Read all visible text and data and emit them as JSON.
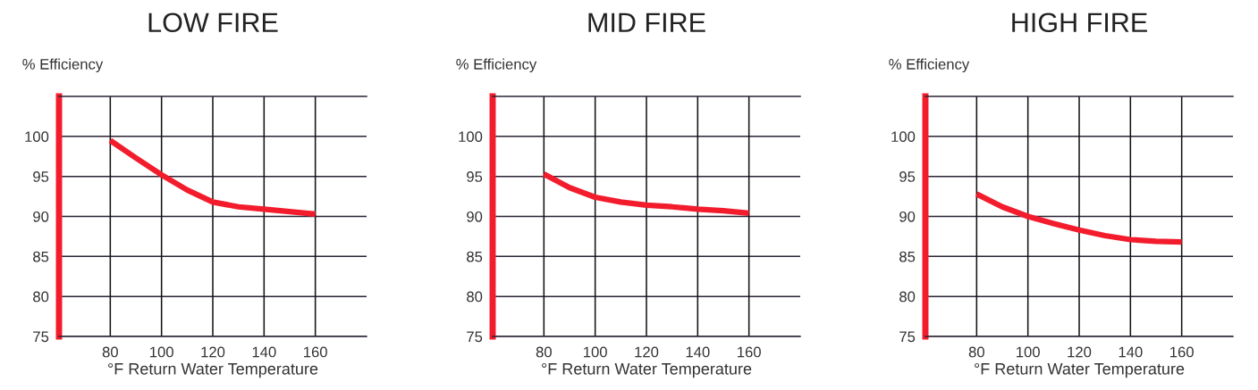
{
  "chart_data": [
    {
      "type": "line",
      "title": "LOW FIRE",
      "xlabel": "°F Return Water Temperature",
      "ylabel": "% Efficiency",
      "x": [
        80,
        90,
        100,
        110,
        120,
        130,
        140,
        150,
        160
      ],
      "series": [
        {
          "color": "#f21c2c",
          "values": [
            99.5,
            97.3,
            95.2,
            93.3,
            91.8,
            91.2,
            90.9,
            90.6,
            90.3
          ]
        }
      ],
      "xlim": [
        60,
        180
      ],
      "xticks": [
        80,
        100,
        120,
        140,
        160
      ],
      "ylim": [
        75,
        105
      ],
      "yticks": [
        75,
        80,
        85,
        90,
        95,
        100
      ],
      "grid": true,
      "marker": "none",
      "line_style": "solid",
      "legend": false
    },
    {
      "type": "line",
      "title": "MID FIRE",
      "xlabel": "°F Return Water Temperature",
      "ylabel": "% Efficiency",
      "x": [
        80,
        90,
        100,
        110,
        120,
        130,
        140,
        150,
        160
      ],
      "series": [
        {
          "color": "#f21c2c",
          "values": [
            95.3,
            93.6,
            92.4,
            91.8,
            91.4,
            91.2,
            90.9,
            90.7,
            90.4
          ]
        }
      ],
      "xlim": [
        60,
        180
      ],
      "xticks": [
        80,
        100,
        120,
        140,
        160
      ],
      "ylim": [
        75,
        105
      ],
      "yticks": [
        75,
        80,
        85,
        90,
        95,
        100
      ],
      "grid": true,
      "marker": "none",
      "line_style": "solid",
      "legend": false
    },
    {
      "type": "line",
      "title": "HIGH FIRE",
      "xlabel": "°F Return Water Temperature",
      "ylabel": "% Efficiency",
      "x": [
        80,
        90,
        100,
        110,
        120,
        130,
        140,
        150,
        160
      ],
      "series": [
        {
          "color": "#f21c2c",
          "values": [
            92.8,
            91.2,
            90.0,
            89.1,
            88.3,
            87.6,
            87.1,
            86.9,
            86.8
          ]
        }
      ],
      "xlim": [
        60,
        180
      ],
      "xticks": [
        80,
        100,
        120,
        140,
        160
      ],
      "ylim": [
        75,
        105
      ],
      "yticks": [
        75,
        80,
        85,
        90,
        95,
        100
      ],
      "grid": true,
      "marker": "none",
      "line_style": "solid",
      "legend": false
    }
  ]
}
